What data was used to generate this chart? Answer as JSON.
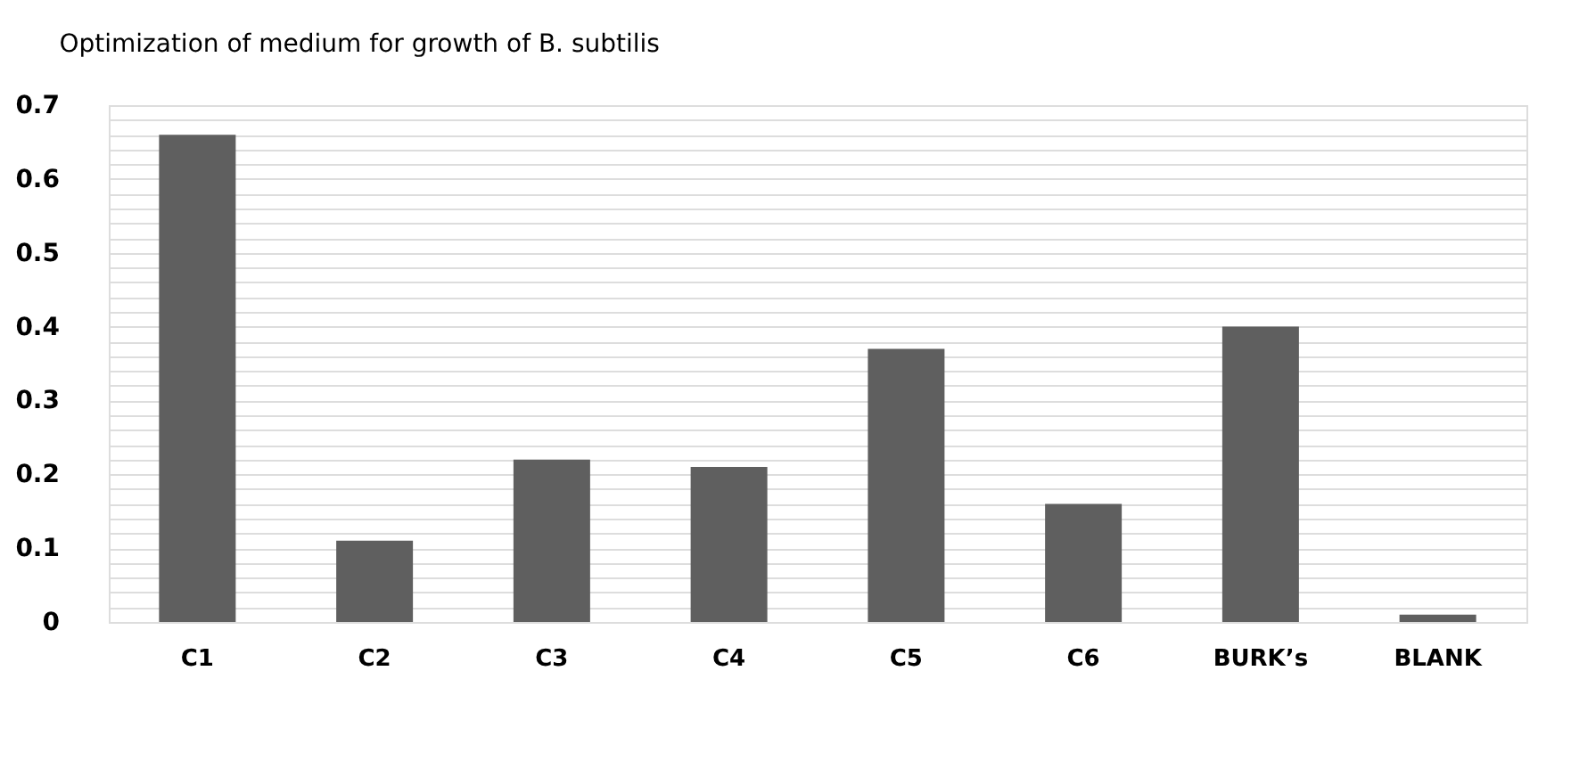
{
  "chart_data": {
    "type": "bar",
    "title": "Optimization of medium for growth of B. subtilis",
    "categories": [
      "C1",
      "C2",
      "C3",
      "C4",
      "C5",
      "C6",
      "BURK’s",
      "BLANK"
    ],
    "values": [
      0.66,
      0.11,
      0.22,
      0.21,
      0.37,
      0.16,
      0.4,
      0.01
    ],
    "color": "#5f5f5f",
    "ylim": [
      0,
      0.7
    ],
    "yticks": [
      0,
      {
        "value": 0.02,
        "label": null
      },
      {
        "value": 0.04,
        "label": null
      },
      {
        "value": 0.06,
        "label": null
      },
      {
        "value": 0.08,
        "label": null
      },
      0.1,
      {
        "value": 0.12,
        "label": null
      },
      {
        "value": 0.14,
        "label": null
      },
      {
        "value": 0.16,
        "label": null
      },
      {
        "value": 0.18,
        "label": null
      },
      0.2,
      {
        "value": 0.22,
        "label": null
      },
      {
        "value": 0.24,
        "label": null
      },
      {
        "value": 0.26,
        "label": null
      },
      {
        "value": 0.28,
        "label": null
      },
      0.3,
      {
        "value": 0.32,
        "label": null
      },
      {
        "value": 0.34,
        "label": null
      },
      {
        "value": 0.36,
        "label": null
      },
      {
        "value": 0.38,
        "label": null
      },
      0.4,
      {
        "value": 0.42,
        "label": null
      },
      {
        "value": 0.44,
        "label": null
      },
      {
        "value": 0.46,
        "label": null
      },
      {
        "value": 0.48,
        "label": null
      },
      0.5,
      {
        "value": 0.52,
        "label": null
      },
      {
        "value": 0.54,
        "label": null
      },
      {
        "value": 0.56,
        "label": null
      },
      {
        "value": 0.58,
        "label": null
      },
      0.6,
      {
        "value": 0.62,
        "label": null
      },
      {
        "value": 0.64,
        "label": null
      },
      {
        "value": 0.66,
        "label": null
      },
      {
        "value": 0.68,
        "label": null
      },
      0.7
    ],
    "grid": "y"
  }
}
